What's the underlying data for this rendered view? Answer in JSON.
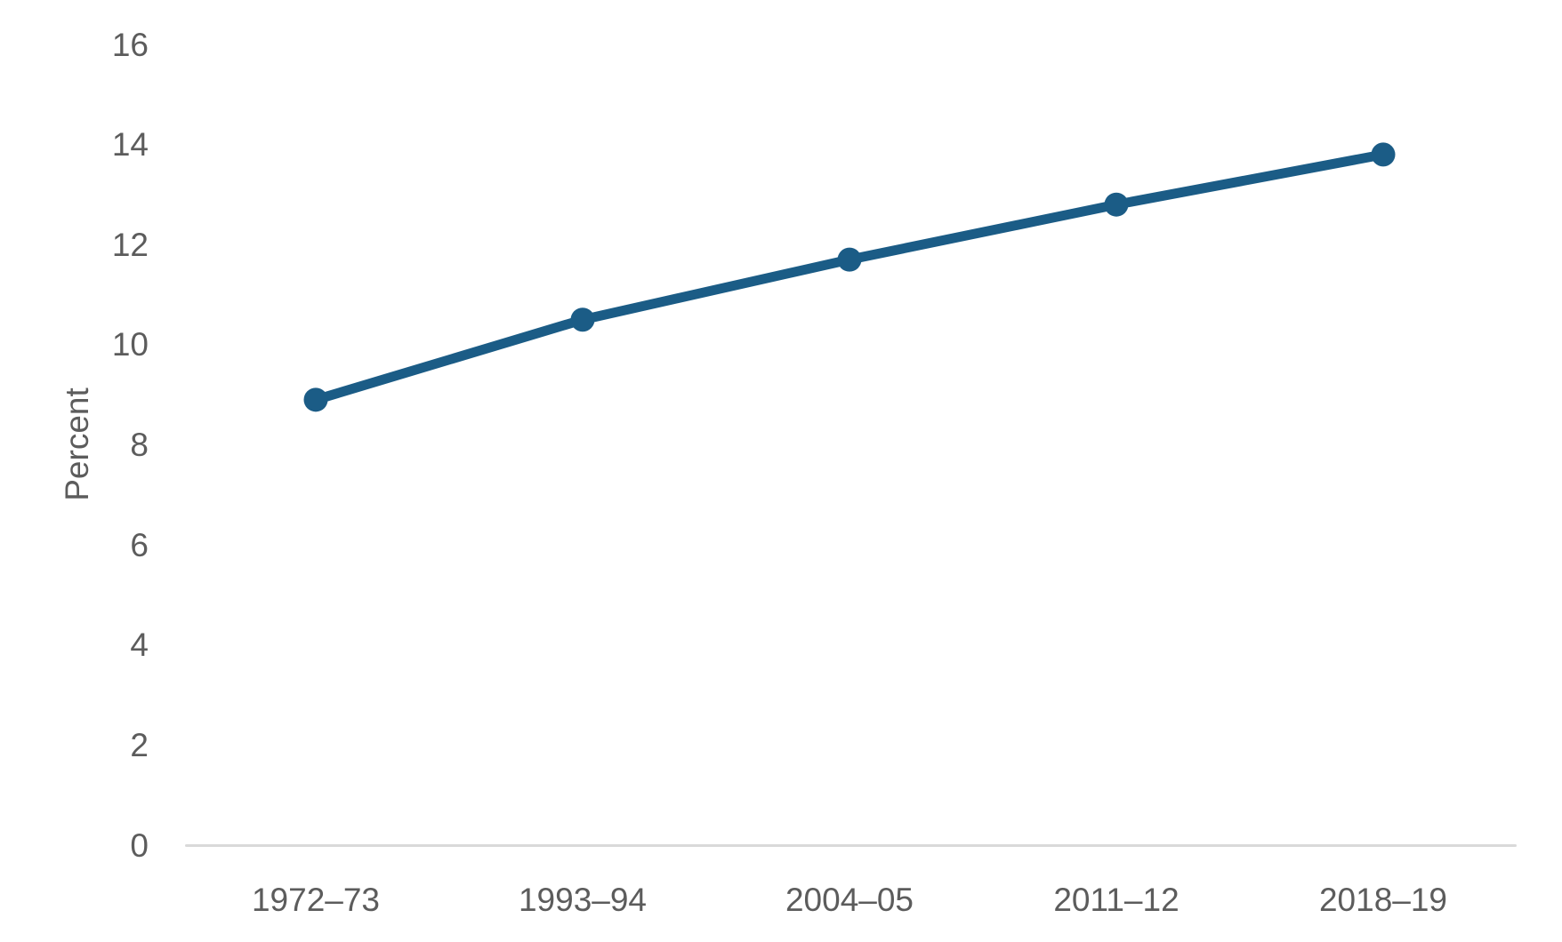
{
  "chart_data": {
    "type": "line",
    "categories": [
      "1972–73",
      "1993–94",
      "2004–05",
      "2011–12",
      "2018–19"
    ],
    "series": [
      {
        "name": "Percent",
        "values": [
          8.9,
          10.5,
          11.7,
          12.8,
          13.8
        ]
      }
    ],
    "title": "",
    "xlabel": "",
    "ylabel": "Percent",
    "ylim": [
      0,
      16
    ],
    "yticks": [
      0,
      2,
      4,
      6,
      8,
      10,
      12,
      14,
      16
    ],
    "grid": false,
    "legend_position": "none",
    "markers": true,
    "line_color": "#1b5c86",
    "marker_color": "#1b5c86",
    "axis_line_color": "#d9d9d9",
    "text_color": "#5c5c5c"
  }
}
